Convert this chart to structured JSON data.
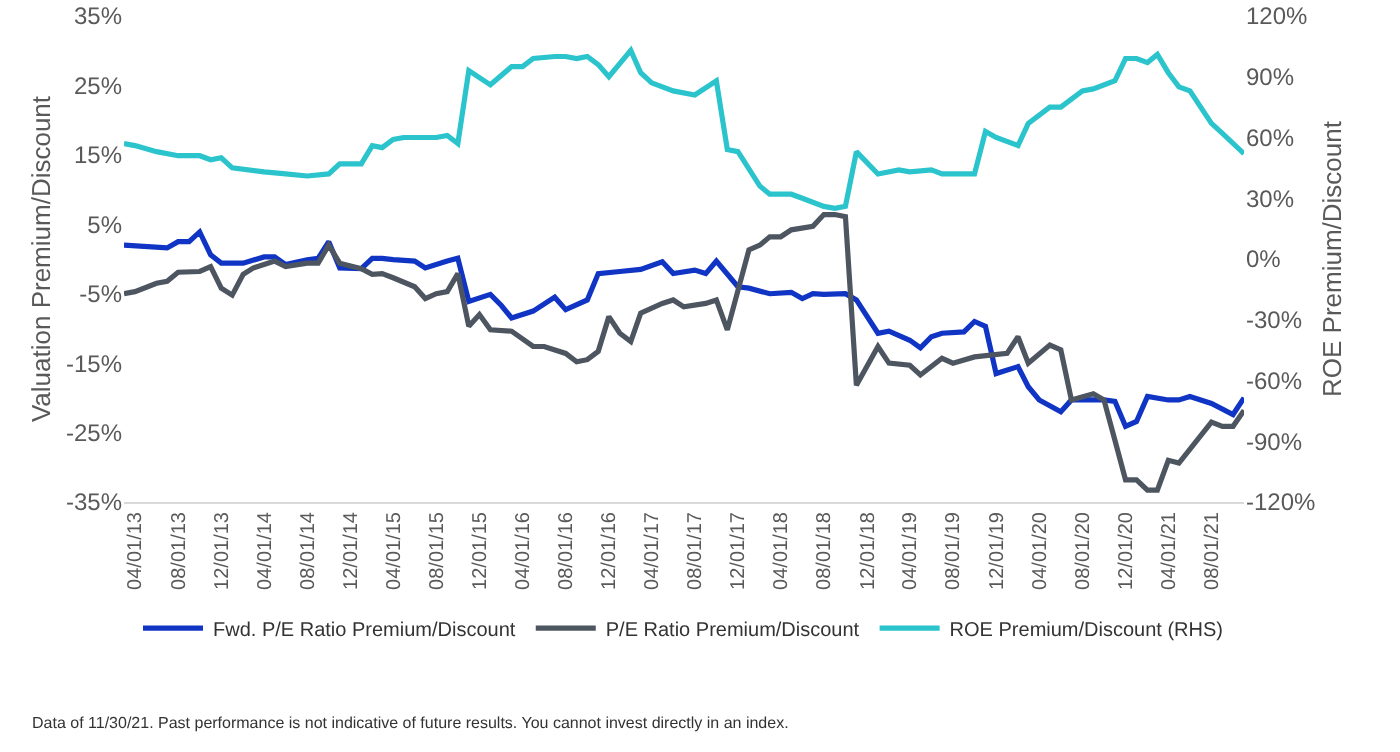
{
  "chart_data": {
    "type": "line",
    "ylabel": "Valuation Premium/Discount",
    "y2label": "ROE Premium/Discount",
    "xlim": [
      "2013-03",
      "2021-11"
    ],
    "xticks": [
      {
        "value": "2013-04-01",
        "label": "04/01/13"
      },
      {
        "value": "2013-08-01",
        "label": "08/01/13"
      },
      {
        "value": "2013-12-01",
        "label": "12/01/13"
      },
      {
        "value": "2014-04-01",
        "label": "04/01/14"
      },
      {
        "value": "2014-08-01",
        "label": "08/01/14"
      },
      {
        "value": "2014-12-01",
        "label": "12/01/14"
      },
      {
        "value": "2015-04-01",
        "label": "04/01/15"
      },
      {
        "value": "2015-08-01",
        "label": "08/01/15"
      },
      {
        "value": "2015-12-01",
        "label": "12/01/15"
      },
      {
        "value": "2016-04-01",
        "label": "04/01/16"
      },
      {
        "value": "2016-08-01",
        "label": "08/01/16"
      },
      {
        "value": "2016-12-01",
        "label": "12/01/16"
      },
      {
        "value": "2017-04-01",
        "label": "04/01/17"
      },
      {
        "value": "2017-08-01",
        "label": "08/01/17"
      },
      {
        "value": "2017-12-01",
        "label": "12/01/17"
      },
      {
        "value": "2018-04-01",
        "label": "04/01/18"
      },
      {
        "value": "2018-08-01",
        "label": "08/01/18"
      },
      {
        "value": "2018-12-01",
        "label": "12/01/18"
      },
      {
        "value": "2019-04-01",
        "label": "04/01/19"
      },
      {
        "value": "2019-08-01",
        "label": "08/01/19"
      },
      {
        "value": "2019-12-01",
        "label": "12/01/19"
      },
      {
        "value": "2020-04-01",
        "label": "04/01/20"
      },
      {
        "value": "2020-08-01",
        "label": "08/01/20"
      },
      {
        "value": "2020-12-01",
        "label": "12/01/20"
      },
      {
        "value": "2021-04-01",
        "label": "04/01/21"
      },
      {
        "value": "2021-08-01",
        "label": "08/01/21"
      }
    ],
    "ylim": [
      -35,
      35
    ],
    "yticks": [
      {
        "value": 35,
        "label": "35%"
      },
      {
        "value": 25,
        "label": "25%"
      },
      {
        "value": 15,
        "label": "15%"
      },
      {
        "value": 5,
        "label": "5%"
      },
      {
        "value": -5,
        "label": "-5%"
      },
      {
        "value": -15,
        "label": "-15%"
      },
      {
        "value": -25,
        "label": "-25%"
      },
      {
        "value": -35,
        "label": "-35%"
      }
    ],
    "y2lim": [
      -120,
      120
    ],
    "y2ticks": [
      {
        "value": 120,
        "label": "120%"
      },
      {
        "value": 90,
        "label": "90%"
      },
      {
        "value": 60,
        "label": "60%"
      },
      {
        "value": 30,
        "label": "30%"
      },
      {
        "value": 0,
        "label": "0%"
      },
      {
        "value": -30,
        "label": "-30%"
      },
      {
        "value": -60,
        "label": "-60%"
      },
      {
        "value": -90,
        "label": "-90%"
      },
      {
        "value": -120,
        "label": "-120%"
      }
    ],
    "grid": false,
    "legend": "bottom",
    "marker": "none",
    "line_style": "solid",
    "series": [
      {
        "name": "Fwd. P/E Ratio Premium/Discount",
        "color": "#1034c4",
        "x": [
          "2013-03",
          "2013-07",
          "2013-08",
          "2013-09",
          "2013-10",
          "2013-11",
          "2013-12",
          "2014-02",
          "2014-04",
          "2014-05",
          "2014-06",
          "2014-08",
          "2014-09",
          "2014-10",
          "2014-11",
          "2015-01",
          "2015-02",
          "2015-03",
          "2015-04",
          "2015-06",
          "2015-07",
          "2015-09",
          "2015-10",
          "2015-11",
          "2016-01",
          "2016-02",
          "2016-03",
          "2016-05",
          "2016-07",
          "2016-08",
          "2016-10",
          "2016-11",
          "2017-01",
          "2017-03",
          "2017-05",
          "2017-06",
          "2017-08",
          "2017-09",
          "2017-10",
          "2017-12",
          "2018-01",
          "2018-03",
          "2018-05",
          "2018-06",
          "2018-07",
          "2018-08",
          "2018-10",
          "2018-11",
          "2019-01",
          "2019-02",
          "2019-04",
          "2019-05",
          "2019-06",
          "2019-07",
          "2019-09",
          "2019-10",
          "2019-11",
          "2019-12",
          "2020-02",
          "2020-03",
          "2020-04",
          "2020-06",
          "2020-07",
          "2020-10",
          "2020-11",
          "2020-12",
          "2021-01",
          "2021-02",
          "2021-04",
          "2021-05",
          "2021-06",
          "2021-08",
          "2021-10",
          "2021-11"
        ],
        "values": [
          2.0,
          1.6,
          2.5,
          2.5,
          3.9,
          0.6,
          -0.6,
          -0.6,
          0.3,
          0.3,
          -0.8,
          -0.1,
          0.1,
          2.5,
          -1.3,
          -1.4,
          0.1,
          0.1,
          -0.1,
          -0.3,
          -1.3,
          -0.3,
          0.1,
          -6.1,
          -5.1,
          -6.7,
          -8.5,
          -7.5,
          -5.5,
          -7.3,
          -5.9,
          -2.1,
          -1.8,
          -1.5,
          -0.4,
          -2.1,
          -1.6,
          -2.1,
          -0.3,
          -4.0,
          -4.2,
          -5.0,
          -4.8,
          -5.7,
          -5.0,
          -5.1,
          -5.0,
          -5.9,
          -10.7,
          -10.4,
          -11.7,
          -12.8,
          -11.2,
          -10.7,
          -10.5,
          -9.0,
          -9.7,
          -16.5,
          -15.5,
          -18.4,
          -20.3,
          -22.0,
          -20.3,
          -20.3,
          -20.5,
          -24.1,
          -23.4,
          -19.8,
          -20.3,
          -20.3,
          -19.8,
          -20.8,
          -22.4,
          -20.0
        ]
      },
      {
        "name": "P/E Ratio Premium/Discount",
        "color": "#4d5660",
        "x": [
          "2013-03",
          "2013-04",
          "2013-06",
          "2013-07",
          "2013-08",
          "2013-10",
          "2013-11",
          "2013-12",
          "2014-01",
          "2014-02",
          "2014-03",
          "2014-05",
          "2014-06",
          "2014-08",
          "2014-09",
          "2014-10",
          "2014-11",
          "2015-01",
          "2015-02",
          "2015-03",
          "2015-04",
          "2015-06",
          "2015-07",
          "2015-08",
          "2015-09",
          "2015-10",
          "2015-11",
          "2015-12",
          "2016-01",
          "2016-03",
          "2016-05",
          "2016-06",
          "2016-08",
          "2016-09",
          "2016-10",
          "2016-11",
          "2016-12",
          "2017-01",
          "2017-02",
          "2017-03",
          "2017-05",
          "2017-06",
          "2017-07",
          "2017-09",
          "2017-10",
          "2017-11",
          "2018-01",
          "2018-02",
          "2018-03",
          "2018-04",
          "2018-05",
          "2018-07",
          "2018-08",
          "2018-09",
          "2018-10",
          "2018-11",
          "2019-01",
          "2019-02",
          "2019-04",
          "2019-05",
          "2019-07",
          "2019-08",
          "2019-10",
          "2020-01",
          "2020-02",
          "2020-03",
          "2020-05",
          "2020-06",
          "2020-07",
          "2020-09",
          "2020-10",
          "2020-11",
          "2020-12",
          "2021-01",
          "2021-02",
          "2021-03",
          "2021-04",
          "2021-05",
          "2021-08",
          "2021-09",
          "2021-10",
          "2021-11"
        ],
        "values": [
          -5.0,
          -4.7,
          -3.5,
          -3.2,
          -1.9,
          -1.8,
          -1.1,
          -4.2,
          -5.2,
          -2.2,
          -1.3,
          -0.3,
          -1.1,
          -0.6,
          -0.6,
          2.0,
          -0.6,
          -1.4,
          -2.2,
          -2.1,
          -2.7,
          -4.0,
          -5.7,
          -5.0,
          -4.7,
          -2.1,
          -9.7,
          -8.0,
          -10.2,
          -10.4,
          -12.6,
          -12.6,
          -13.6,
          -14.8,
          -14.5,
          -13.3,
          -8.3,
          -10.7,
          -11.9,
          -7.8,
          -6.4,
          -5.9,
          -6.9,
          -6.4,
          -5.9,
          -10.2,
          1.3,
          2.0,
          3.2,
          3.2,
          4.2,
          4.7,
          6.4,
          6.4,
          6.1,
          -18.2,
          -12.6,
          -15.0,
          -15.3,
          -16.7,
          -14.3,
          -15.0,
          -14.1,
          -13.6,
          -11.2,
          -15.0,
          -12.4,
          -13.1,
          -20.3,
          -19.4,
          -20.3,
          -26.1,
          -31.8,
          -31.8,
          -33.3,
          -33.3,
          -29.0,
          -29.4,
          -23.5,
          -24.1,
          -24.1,
          -21.8
        ]
      },
      {
        "name": "ROE Premium/Discount (RHS)",
        "color": "#2bc4cc",
        "axis": "y2",
        "x": [
          "2013-03",
          "2013-04",
          "2013-06",
          "2013-08",
          "2013-10",
          "2013-11",
          "2013-12",
          "2014-01",
          "2014-04",
          "2014-06",
          "2014-08",
          "2014-10",
          "2014-11",
          "2015-01",
          "2015-02",
          "2015-03",
          "2015-04",
          "2015-05",
          "2015-08",
          "2015-09",
          "2015-10",
          "2015-11",
          "2016-01",
          "2016-03",
          "2016-04",
          "2016-05",
          "2016-07",
          "2016-08",
          "2016-09",
          "2016-10",
          "2016-11",
          "2016-12",
          "2017-02",
          "2017-03",
          "2017-04",
          "2017-06",
          "2017-08",
          "2017-10",
          "2017-11",
          "2017-12",
          "2018-02",
          "2018-03",
          "2018-05",
          "2018-06",
          "2018-08",
          "2018-09",
          "2018-10",
          "2018-11",
          "2019-01",
          "2019-03",
          "2019-04",
          "2019-06",
          "2019-07",
          "2019-09",
          "2019-10",
          "2019-11",
          "2019-12",
          "2020-02",
          "2020-03",
          "2020-05",
          "2020-06",
          "2020-08",
          "2020-09",
          "2020-11",
          "2020-12",
          "2021-01",
          "2021-02",
          "2021-03",
          "2021-04",
          "2021-05",
          "2021-06",
          "2021-08",
          "2021-09",
          "2021-11"
        ],
        "values": [
          57,
          56,
          53,
          51,
          51,
          49,
          50,
          45,
          43,
          42,
          41,
          42,
          47,
          47,
          56,
          55,
          59,
          60,
          60,
          61,
          57,
          93,
          86,
          95,
          95,
          99,
          100,
          100,
          99,
          100,
          96,
          90,
          103,
          92,
          87,
          83,
          81,
          88,
          54,
          53,
          36,
          32,
          32,
          30,
          26,
          25,
          26,
          53,
          42,
          44,
          43,
          44,
          42,
          42,
          42,
          63,
          60,
          56,
          67,
          75,
          75,
          83,
          84,
          88,
          99,
          99,
          97,
          101,
          92,
          85,
          83,
          67,
          62,
          52
        ]
      }
    ],
    "annotations": [
      "Data of 11/30/21. Past performance is not indicative of future results. You cannot invest directly in an index."
    ]
  }
}
